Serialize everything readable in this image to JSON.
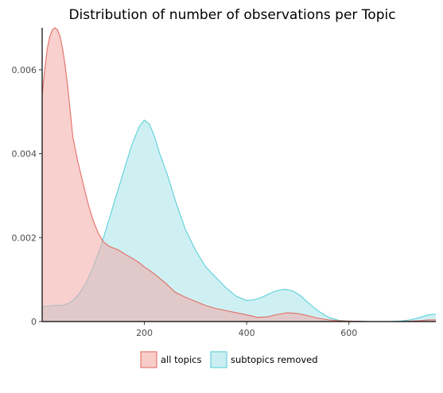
{
  "chart_data": {
    "type": "area",
    "title": "Distribution of number of observations per Topic",
    "xlabel": "",
    "ylabel": "",
    "xlim": [
      0,
      770
    ],
    "ylim": [
      0,
      0.007
    ],
    "x_ticks": [
      200,
      400,
      600
    ],
    "x_tick_labels": [
      "200",
      "400",
      "600"
    ],
    "y_ticks": [
      0,
      0.002,
      0.004,
      0.006
    ],
    "y_tick_labels": [
      "0",
      "0.002",
      "0.004",
      "0.006"
    ],
    "grid": false,
    "legend_position": "bottom",
    "series": [
      {
        "name": "all topics",
        "color": "#e0635a",
        "fill": "#f2aaa5",
        "points": [
          [
            0,
            0.0054
          ],
          [
            5,
            0.006
          ],
          [
            10,
            0.0065
          ],
          [
            15,
            0.0068
          ],
          [
            20,
            0.00695
          ],
          [
            25,
            0.007
          ],
          [
            30,
            0.00695
          ],
          [
            35,
            0.0068
          ],
          [
            40,
            0.0065
          ],
          [
            45,
            0.0061
          ],
          [
            50,
            0.0056
          ],
          [
            55,
            0.005
          ],
          [
            60,
            0.0044
          ],
          [
            70,
            0.0038
          ],
          [
            80,
            0.0033
          ],
          [
            90,
            0.0028
          ],
          [
            100,
            0.0024
          ],
          [
            110,
            0.0021
          ],
          [
            120,
            0.0019
          ],
          [
            130,
            0.0018
          ],
          [
            140,
            0.00175
          ],
          [
            150,
            0.0017
          ],
          [
            160,
            0.00162
          ],
          [
            170,
            0.00155
          ],
          [
            180,
            0.00148
          ],
          [
            190,
            0.0014
          ],
          [
            200,
            0.0013
          ],
          [
            210,
            0.00122
          ],
          [
            220,
            0.00113
          ],
          [
            240,
            0.00093
          ],
          [
            260,
            0.0007
          ],
          [
            280,
            0.00058
          ],
          [
            300,
            0.00048
          ],
          [
            320,
            0.00038
          ],
          [
            340,
            0.00031
          ],
          [
            360,
            0.00026
          ],
          [
            380,
            0.00021
          ],
          [
            400,
            0.00016
          ],
          [
            420,
            0.0001
          ],
          [
            440,
            0.00011
          ],
          [
            460,
            0.00017
          ],
          [
            480,
            0.00021
          ],
          [
            500,
            0.00019
          ],
          [
            520,
            0.00014
          ],
          [
            540,
            8e-05
          ],
          [
            560,
            4e-05
          ],
          [
            580,
            2e-05
          ],
          [
            600,
            1e-05
          ],
          [
            640,
            0.0
          ],
          [
            680,
            0.0
          ],
          [
            700,
            0.0
          ],
          [
            720,
            1e-05
          ],
          [
            740,
            2e-05
          ],
          [
            755,
            4e-05
          ],
          [
            770,
            4e-05
          ]
        ]
      },
      {
        "name": "subtopics removed",
        "color": "#4ccbd6",
        "fill": "#a8e3ea",
        "points": [
          [
            0,
            0.00035
          ],
          [
            20,
            0.00038
          ],
          [
            40,
            0.00039
          ],
          [
            55,
            0.00045
          ],
          [
            70,
            0.00062
          ],
          [
            85,
            0.0009
          ],
          [
            100,
            0.0013
          ],
          [
            115,
            0.0018
          ],
          [
            130,
            0.0024
          ],
          [
            145,
            0.003
          ],
          [
            160,
            0.0036
          ],
          [
            175,
            0.0042
          ],
          [
            190,
            0.00465
          ],
          [
            200,
            0.0048
          ],
          [
            210,
            0.0047
          ],
          [
            220,
            0.0044
          ],
          [
            230,
            0.004
          ],
          [
            245,
            0.0035
          ],
          [
            260,
            0.0029
          ],
          [
            280,
            0.0022
          ],
          [
            300,
            0.0017
          ],
          [
            320,
            0.0013
          ],
          [
            340,
            0.00105
          ],
          [
            360,
            0.0008
          ],
          [
            380,
            0.0006
          ],
          [
            400,
            0.0005
          ],
          [
            415,
            0.00052
          ],
          [
            430,
            0.00058
          ],
          [
            445,
            0.00067
          ],
          [
            460,
            0.00074
          ],
          [
            475,
            0.00077
          ],
          [
            490,
            0.00073
          ],
          [
            505,
            0.00062
          ],
          [
            520,
            0.00045
          ],
          [
            540,
            0.00025
          ],
          [
            560,
            0.0001
          ],
          [
            580,
            3e-05
          ],
          [
            600,
            1e-05
          ],
          [
            640,
            0.0
          ],
          [
            680,
            0.0
          ],
          [
            700,
            1e-05
          ],
          [
            720,
            4e-05
          ],
          [
            740,
            0.0001
          ],
          [
            755,
            0.00016
          ],
          [
            770,
            0.00018
          ]
        ]
      }
    ]
  },
  "legend": {
    "items": [
      {
        "label": "all topics",
        "stroke": "#e0635a",
        "fill": "#f2aaa5"
      },
      {
        "label": "subtopics removed",
        "stroke": "#4ccbd6",
        "fill": "#a8e3ea"
      }
    ]
  },
  "colors": {
    "axis": "#000000",
    "tick_text": "#4d4d4d",
    "title": "#000000"
  }
}
